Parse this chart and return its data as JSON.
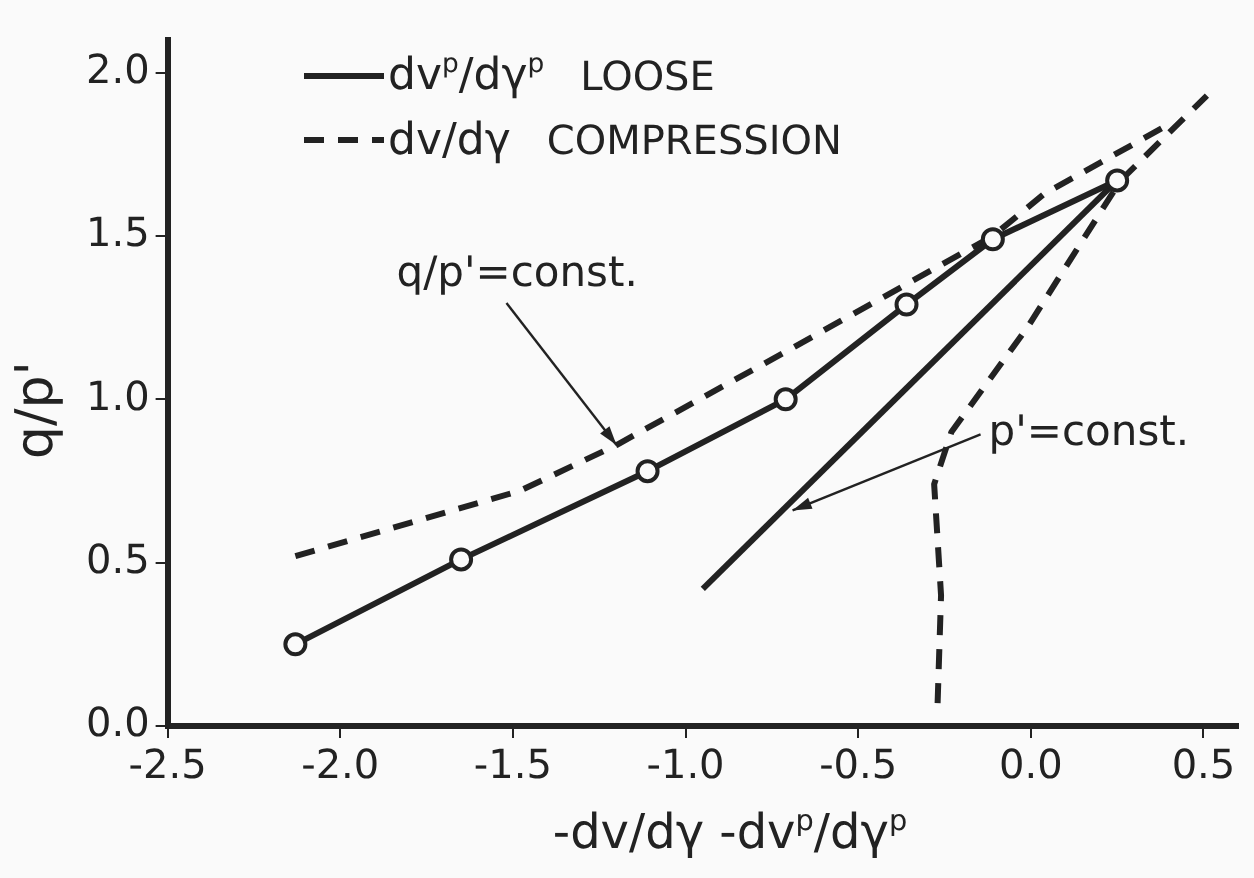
{
  "chart_data": {
    "type": "line",
    "xlabel": "-dv/dγ   -dv$^{p}$/dγ$^{p}$",
    "ylabel": "q/p'",
    "xlim": [
      -2.5,
      0.6
    ],
    "ylim": [
      0,
      2.1
    ],
    "xticks": [
      {
        "value": -2.5,
        "label": "-2.5"
      },
      {
        "value": -2,
        "label": "-2.0"
      },
      {
        "value": -1.5,
        "label": "-1.5"
      },
      {
        "value": -1,
        "label": "-1.0"
      },
      {
        "value": -0.5,
        "label": "-0.5"
      },
      {
        "value": 0,
        "label": "0.0"
      },
      {
        "value": 0.5,
        "label": "0.5"
      }
    ],
    "yticks": [
      {
        "value": 0,
        "label": "0.0"
      },
      {
        "value": 0.5,
        "label": "0.5"
      },
      {
        "value": 1,
        "label": "1.0"
      },
      {
        "value": 1.5,
        "label": "1.5"
      },
      {
        "value": 2,
        "label": "2.0"
      }
    ],
    "grid": false,
    "legend": "top left",
    "series": [
      {
        "name": "dv$^{p}$/dγ$^{p}$",
        "color": "#222222",
        "line_style": "solid",
        "marker": "circle",
        "x": [
          -2.13,
          -1.65,
          -1.11,
          -0.71,
          -0.36,
          -0.11,
          0.25
        ],
        "values": [
          0.25,
          0.51,
          0.78,
          1.0,
          1.29,
          1.49,
          1.67
        ]
      },
      {
        "name": "dv/dγ",
        "color": "#222222",
        "line_style": "dashed",
        "marker": "none",
        "x": [
          -2.13,
          -1.48,
          -1.2,
          -0.72,
          -0.11,
          0.04,
          0.38
        ],
        "values": [
          0.52,
          0.72,
          0.86,
          1.14,
          1.5,
          1.63,
          1.83
        ]
      },
      {
        "color": "#222222",
        "line_style": "solid",
        "marker": "none",
        "x": [
          -0.95,
          0.25
        ],
        "values": [
          0.42,
          1.67
        ]
      },
      {
        "color": "#222222",
        "line_style": "dashed",
        "marker": "none",
        "x": [
          -0.27,
          -0.26,
          -0.28,
          -0.23,
          -0.01,
          0.26,
          0.51
        ],
        "values": [
          0.07,
          0.4,
          0.74,
          0.9,
          1.22,
          1.67,
          1.93
        ]
      }
    ],
    "annotations": [
      "LOOSE",
      "COMPRESSION",
      {
        "text": "q/p'=const.",
        "x": -1.2,
        "y": 0.86
      },
      {
        "text": "p'=const.",
        "x": -0.69,
        "y": 0.66
      }
    ]
  }
}
